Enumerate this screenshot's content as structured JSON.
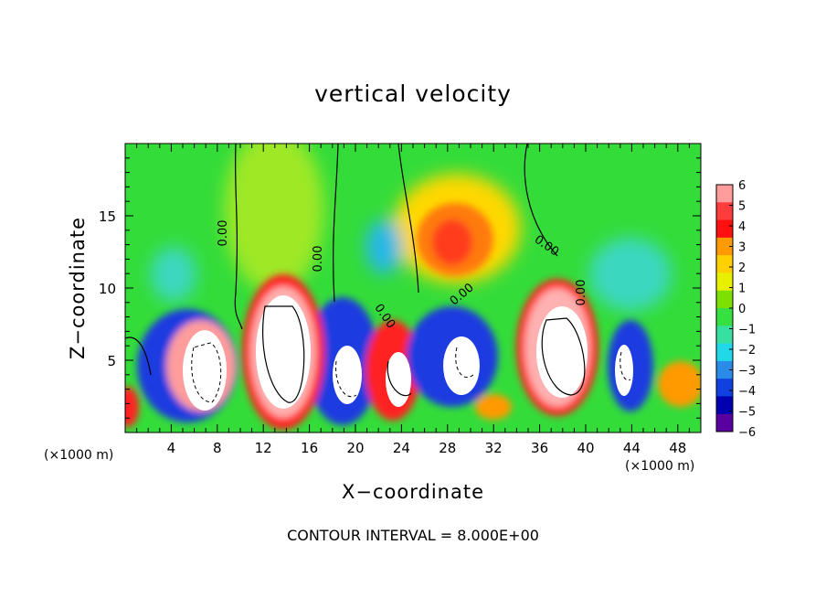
{
  "chart_data": {
    "type": "heatmap",
    "title": "vertical velocity",
    "xlabel": "X−coordinate",
    "ylabel": "Z−coordinate",
    "x_unit_labels": [
      "(×1000 m)",
      "(×1000 m)"
    ],
    "xlim": [
      0,
      50
    ],
    "ylim": [
      0,
      20
    ],
    "x_ticks": [
      4,
      8,
      12,
      16,
      20,
      24,
      28,
      32,
      36,
      40,
      44,
      48
    ],
    "y_ticks": [
      5,
      10,
      15
    ],
    "colorbar": {
      "ticks": [
        "6",
        "5",
        "4",
        "3",
        "2",
        "1",
        "0",
        "−1",
        "−2",
        "−3",
        "−4",
        "−5",
        "−6"
      ],
      "colors": [
        "#ff9c9c",
        "#ff3c3c",
        "#ff1010",
        "#ff9a00",
        "#ffd000",
        "#e8f000",
        "#7ce000",
        "#36e040",
        "#38e0a0",
        "#20d8e8",
        "#2a8ce8",
        "#1040e0",
        "#0000b0",
        "#5a00a0"
      ]
    },
    "contour_labels": [
      "0.00",
      "0.00",
      "0.00",
      "0.00",
      "0.00",
      "0.00"
    ],
    "footer": "CONTOUR INTERVAL = 8.000E+00"
  }
}
